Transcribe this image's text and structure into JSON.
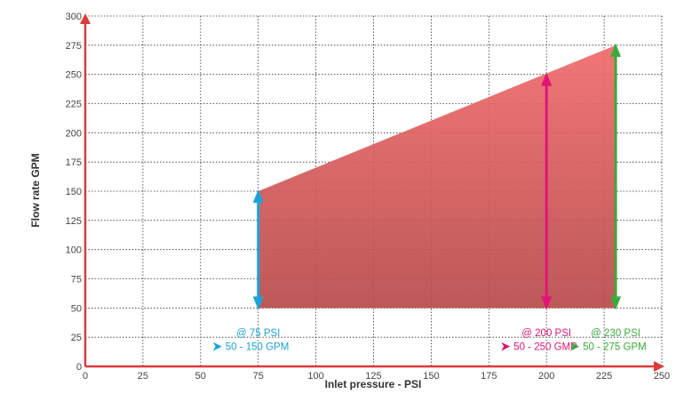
{
  "chart_data": {
    "type": "area",
    "xlabel": "Inlet pressure - PSI",
    "ylabel": "Flow rate GPM",
    "xlim": [
      0,
      250
    ],
    "ylim": [
      0,
      300
    ],
    "xticks": [
      0,
      25,
      50,
      75,
      100,
      125,
      150,
      175,
      200,
      225,
      250
    ],
    "yticks": [
      0,
      25,
      50,
      75,
      100,
      125,
      150,
      175,
      200,
      225,
      250,
      275,
      300
    ],
    "grid": true,
    "region": {
      "x": [
        75,
        230
      ],
      "upper": [
        150,
        275
      ],
      "lower": [
        50,
        50
      ],
      "color": "#e84f4f"
    },
    "ranges": [
      {
        "x": 75,
        "min": 50,
        "max": 150,
        "color": "#1aa3db",
        "line1": "@ 75 PSI",
        "line2": "50 - 150 GPM"
      },
      {
        "x": 200,
        "min": 50,
        "max": 250,
        "color": "#e0147a",
        "line1": "@ 200 PSI",
        "line2": "50 - 250 GMP"
      },
      {
        "x": 230,
        "min": 50,
        "max": 275,
        "color": "#3aaa3a",
        "line1": "@ 230 PSI",
        "line2": "50 - 275 GPM"
      }
    ],
    "axis_color": "#e03a3a"
  }
}
